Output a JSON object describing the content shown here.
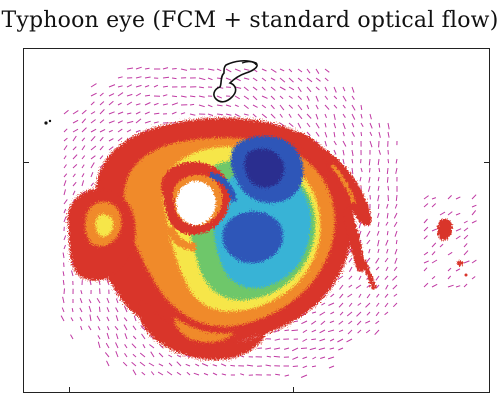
{
  "figure": {
    "title": "Typhoon eye (FCM + standard optical flow)"
  },
  "colors": {
    "vector_magenta": "#c03aa3",
    "outer_red": "#d9342b",
    "mid_orange": "#f08a2a",
    "yellow": "#f6e64a",
    "green": "#6ec76a",
    "cyan": "#38b3d6",
    "blue": "#2d56b8",
    "deep_blue": "#2a2f8f"
  },
  "image_notes": {
    "content": "satellite-derived typhoon segmentation with motion vectors"
  }
}
